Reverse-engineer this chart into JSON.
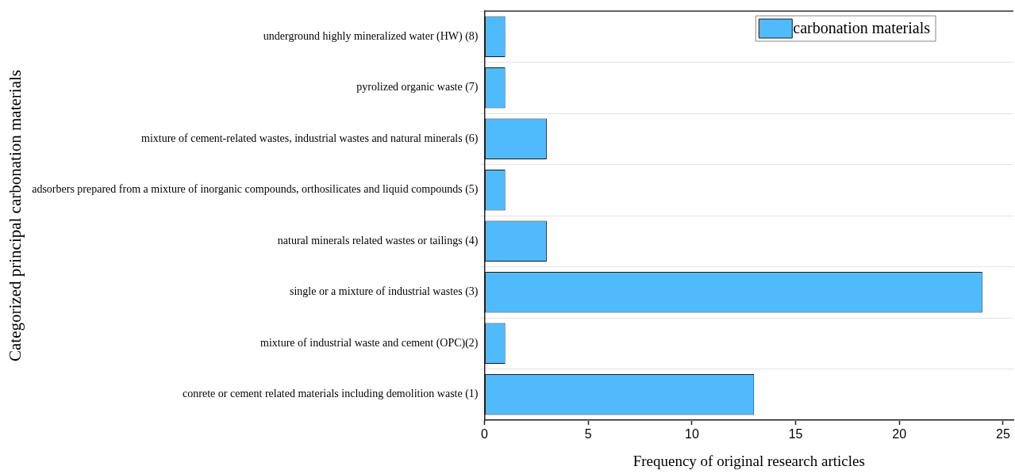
{
  "chart_data": {
    "type": "bar",
    "orientation": "horizontal",
    "xlabel": "Frequency of original research articles",
    "ylabel": "Categorized principal carbonation materials",
    "categories": [
      "underground highly mineralized water (HW) (8)",
      "pyrolized organic waste (7)",
      "mixture of cement-related wastes, industrial wastes and natural minerals (6)",
      "adsorbers prepared from a mixture of inorganic compounds, orthosilicates and liquid compounds (5)",
      "natural minerals related wastes or tailings (4)",
      "single or a mixture of industrial wastes (3)",
      "mixture of industrial waste and cement (OPC)(2)",
      "conrete or cement related materials including demolition waste (1)"
    ],
    "series": [
      {
        "name": "carbonation materials",
        "color": "#4fbbfd",
        "values": [
          1,
          1,
          3,
          1,
          3,
          24,
          1,
          13
        ]
      }
    ],
    "xlim": [
      0,
      25.5
    ],
    "xticks": [
      0,
      5,
      10,
      15,
      20,
      25
    ],
    "grid": "y",
    "legend": "top right"
  }
}
